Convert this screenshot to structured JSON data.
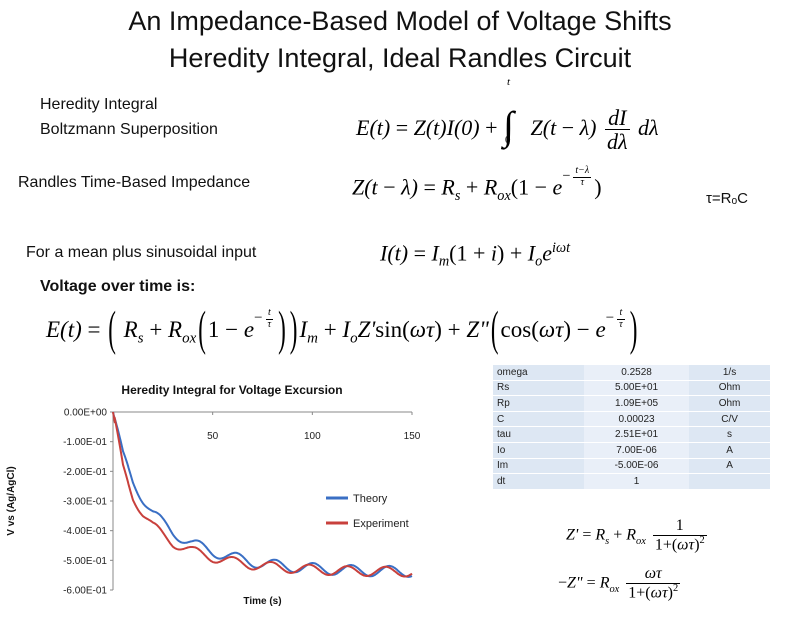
{
  "slide": {
    "title_line1": "An Impedance-Based Model of Voltage Shifts",
    "title_line2": "Heredity Integral, Ideal Randles Circuit"
  },
  "labels": {
    "heredity_integral": "Heredity Integral",
    "boltzmann": "Boltzmann Superposition",
    "randles": "Randles Time-Based Impedance",
    "sinusoidal": "For a mean plus sinusoidal input",
    "voltage_over_time": "Voltage over time is:",
    "tau_def": "τ=RₒC"
  },
  "params_table": [
    {
      "name": "omega",
      "value": "0.2528",
      "unit": "1/s"
    },
    {
      "name": "Rs",
      "value": "5.00E+01",
      "unit": "Ohm"
    },
    {
      "name": "Rp",
      "value": "1.09E+05",
      "unit": "Ohm"
    },
    {
      "name": "C",
      "value": "0.00023",
      "unit": "C/V"
    },
    {
      "name": "tau",
      "value": "2.51E+01",
      "unit": "s"
    },
    {
      "name": "Io",
      "value": "7.00E-06",
      "unit": "A"
    },
    {
      "name": "Im",
      "value": "-5.00E-06",
      "unit": "A"
    },
    {
      "name": "dt",
      "value": "1",
      "unit": ""
    }
  ],
  "chart_data": {
    "type": "line",
    "title": "Heredity Integral for Voltage Excursion",
    "xlabel": "Time (s)",
    "ylabel": "V vs (Ag/AgCl)",
    "xlim": [
      0,
      150
    ],
    "ylim": [
      -0.6,
      0
    ],
    "x_ticks": [
      "50",
      "100",
      "150"
    ],
    "y_ticks": [
      "0.00E+00",
      "-1.00E-01",
      "-2.00E-01",
      "-3.00E-01",
      "-4.00E-01",
      "-5.00E-01",
      "-6.00E-01"
    ],
    "legend_position": "right",
    "grid": false,
    "series": [
      {
        "name": "Theory",
        "color": "#3a6fc4",
        "x": [
          0,
          5,
          10,
          15,
          20,
          25,
          30,
          40,
          50,
          60,
          70,
          80,
          90,
          100,
          110,
          120,
          130,
          140,
          150
        ],
        "y": [
          0,
          -0.15,
          -0.235,
          -0.29,
          -0.34,
          -0.375,
          -0.405,
          -0.445,
          -0.47,
          -0.49,
          -0.505,
          -0.515,
          -0.522,
          -0.527,
          -0.531,
          -0.534,
          -0.536,
          -0.537,
          -0.538
        ],
        "oscillation_amplitude": 0.018
      },
      {
        "name": "Experiment",
        "color": "#c8403c",
        "x": [
          0,
          5,
          10,
          15,
          20,
          25,
          30,
          40,
          50,
          60,
          70,
          80,
          90,
          100,
          110,
          120,
          130,
          140,
          150
        ],
        "y": [
          0,
          -0.19,
          -0.285,
          -0.34,
          -0.385,
          -0.415,
          -0.44,
          -0.47,
          -0.49,
          -0.505,
          -0.515,
          -0.522,
          -0.527,
          -0.531,
          -0.534,
          -0.536,
          -0.537,
          -0.538,
          -0.539
        ],
        "oscillation_amplitude": 0.016
      }
    ]
  }
}
